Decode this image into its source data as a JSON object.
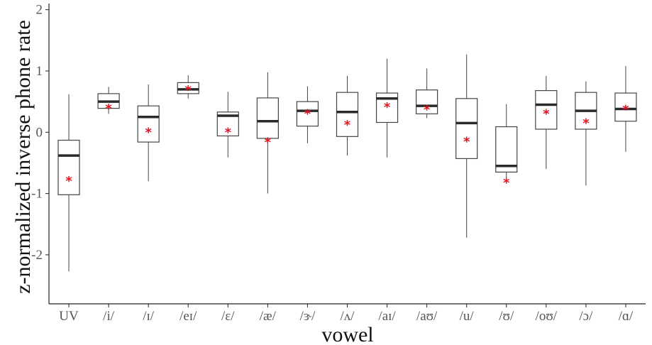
{
  "chart_data": {
    "type": "box",
    "xlabel": "vowel",
    "ylabel": "z-normalized inverse phone rate",
    "ylim": [
      -2.8,
      2.1
    ],
    "yticks": [
      -2,
      -1,
      0,
      1,
      2
    ],
    "grid": false,
    "mean_marker_color": "#e8101c",
    "categories": [
      "UV",
      "/i/",
      "/ɪ/",
      "/eɪ/",
      "/ɛ/",
      "/æ/",
      "/ɝ/",
      "/ʌ/",
      "/aɪ/",
      "/aʊ/",
      "/u/",
      "/ʊ/",
      "/oʊ/",
      "/ɔ/",
      "/ɑ/"
    ],
    "boxes": [
      {
        "min": -2.27,
        "q1": -1.02,
        "median": -0.38,
        "q3": -0.13,
        "max": 0.62,
        "mean": -0.77
      },
      {
        "min": 0.3,
        "q1": 0.39,
        "median": 0.5,
        "q3": 0.63,
        "max": 0.74,
        "mean": 0.41
      },
      {
        "min": -0.8,
        "q1": -0.16,
        "median": 0.25,
        "q3": 0.43,
        "max": 0.78,
        "mean": 0.02
      },
      {
        "min": 0.55,
        "q1": 0.63,
        "median": 0.7,
        "q3": 0.81,
        "max": 0.93,
        "mean": 0.71
      },
      {
        "min": -0.41,
        "q1": -0.06,
        "median": 0.27,
        "q3": 0.33,
        "max": 0.66,
        "mean": 0.02
      },
      {
        "min": -1.0,
        "q1": -0.1,
        "median": 0.18,
        "q3": 0.56,
        "max": 0.98,
        "mean": -0.14
      },
      {
        "min": -0.18,
        "q1": 0.1,
        "median": 0.35,
        "q3": 0.5,
        "max": 0.75,
        "mean": 0.32
      },
      {
        "min": -0.38,
        "q1": -0.07,
        "median": 0.33,
        "q3": 0.65,
        "max": 0.92,
        "mean": 0.14
      },
      {
        "min": -0.41,
        "q1": 0.16,
        "median": 0.55,
        "q3": 0.64,
        "max": 1.2,
        "mean": 0.43
      },
      {
        "min": 0.23,
        "q1": 0.3,
        "median": 0.43,
        "q3": 0.69,
        "max": 1.04,
        "mean": 0.39
      },
      {
        "min": -1.72,
        "q1": -0.43,
        "median": 0.15,
        "q3": 0.55,
        "max": 1.27,
        "mean": -0.13
      },
      {
        "min": -0.75,
        "q1": -0.65,
        "median": -0.55,
        "q3": 0.09,
        "max": 0.46,
        "mean": -0.8
      },
      {
        "min": -0.6,
        "q1": 0.05,
        "median": 0.45,
        "q3": 0.68,
        "max": 0.92,
        "mean": 0.32
      },
      {
        "min": -0.87,
        "q1": 0.05,
        "median": 0.35,
        "q3": 0.65,
        "max": 0.83,
        "mean": 0.17
      },
      {
        "min": -0.32,
        "q1": 0.18,
        "median": 0.38,
        "q3": 0.64,
        "max": 1.08,
        "mean": 0.39
      }
    ]
  }
}
